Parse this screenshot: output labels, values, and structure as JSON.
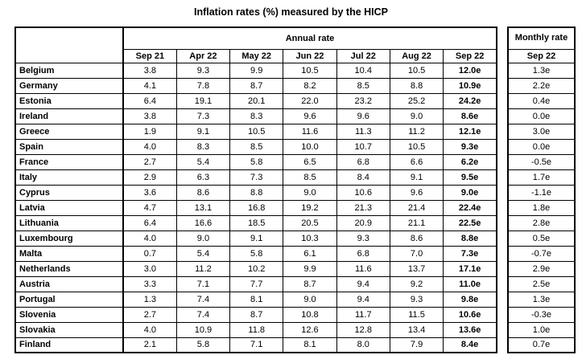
{
  "chart_data": {
    "type": "table",
    "title": "Inflation rates (%) measured by the HICP",
    "annual_group_label": "Annual rate",
    "monthly_group_label": "Monthly rate",
    "annual_columns": [
      "Sep 21",
      "Apr 22",
      "May 22",
      "Jun 22",
      "Jul 22",
      "Aug 22",
      "Sep 22"
    ],
    "monthly_column": "Sep 22",
    "rows": [
      {
        "country": "Belgium",
        "annual": [
          "3.8",
          "9.3",
          "9.9",
          "10.5",
          "10.4",
          "10.5",
          "12.0e"
        ],
        "monthly": "1.3e"
      },
      {
        "country": "Germany",
        "annual": [
          "4.1",
          "7.8",
          "8.7",
          "8.2",
          "8.5",
          "8.8",
          "10.9e"
        ],
        "monthly": "2.2e"
      },
      {
        "country": "Estonia",
        "annual": [
          "6.4",
          "19.1",
          "20.1",
          "22.0",
          "23.2",
          "25.2",
          "24.2e"
        ],
        "monthly": "0.4e"
      },
      {
        "country": "Ireland",
        "annual": [
          "3.8",
          "7.3",
          "8.3",
          "9.6",
          "9.6",
          "9.0",
          "8.6e"
        ],
        "monthly": "0.0e"
      },
      {
        "country": "Greece",
        "annual": [
          "1.9",
          "9.1",
          "10.5",
          "11.6",
          "11.3",
          "11.2",
          "12.1e"
        ],
        "monthly": "3.0e"
      },
      {
        "country": "Spain",
        "annual": [
          "4.0",
          "8.3",
          "8.5",
          "10.0",
          "10.7",
          "10.5",
          "9.3e"
        ],
        "monthly": "0.0e"
      },
      {
        "country": "France",
        "annual": [
          "2.7",
          "5.4",
          "5.8",
          "6.5",
          "6.8",
          "6.6",
          "6.2e"
        ],
        "monthly": "-0.5e"
      },
      {
        "country": "Italy",
        "annual": [
          "2.9",
          "6.3",
          "7.3",
          "8.5",
          "8.4",
          "9.1",
          "9.5e"
        ],
        "monthly": "1.7e"
      },
      {
        "country": "Cyprus",
        "annual": [
          "3.6",
          "8.6",
          "8.8",
          "9.0",
          "10.6",
          "9.6",
          "9.0e"
        ],
        "monthly": "-1.1e"
      },
      {
        "country": "Latvia",
        "annual": [
          "4.7",
          "13.1",
          "16.8",
          "19.2",
          "21.3",
          "21.4",
          "22.4e"
        ],
        "monthly": "1.8e"
      },
      {
        "country": "Lithuania",
        "annual": [
          "6.4",
          "16.6",
          "18.5",
          "20.5",
          "20.9",
          "21.1",
          "22.5e"
        ],
        "monthly": "2.8e"
      },
      {
        "country": "Luxembourg",
        "annual": [
          "4.0",
          "9.0",
          "9.1",
          "10.3",
          "9.3",
          "8.6",
          "8.8e"
        ],
        "monthly": "0.5e"
      },
      {
        "country": "Malta",
        "annual": [
          "0.7",
          "5.4",
          "5.8",
          "6.1",
          "6.8",
          "7.0",
          "7.3e"
        ],
        "monthly": "-0.7e"
      },
      {
        "country": "Netherlands",
        "annual": [
          "3.0",
          "11.2",
          "10.2",
          "9.9",
          "11.6",
          "13.7",
          "17.1e"
        ],
        "monthly": "2.9e"
      },
      {
        "country": "Austria",
        "annual": [
          "3.3",
          "7.1",
          "7.7",
          "8.7",
          "9.4",
          "9.2",
          "11.0e"
        ],
        "monthly": "2.5e"
      },
      {
        "country": "Portugal",
        "annual": [
          "1.3",
          "7.4",
          "8.1",
          "9.0",
          "9.4",
          "9.3",
          "9.8e"
        ],
        "monthly": "1.3e"
      },
      {
        "country": "Slovenia",
        "annual": [
          "2.7",
          "7.4",
          "8.7",
          "10.8",
          "11.7",
          "11.5",
          "10.6e"
        ],
        "monthly": "-0.3e"
      },
      {
        "country": "Slovakia",
        "annual": [
          "4.0",
          "10.9",
          "11.8",
          "12.6",
          "12.8",
          "13.4",
          "13.6e"
        ],
        "monthly": "1.0e"
      },
      {
        "country": "Finland",
        "annual": [
          "2.1",
          "5.8",
          "7.1",
          "8.1",
          "8.0",
          "7.9",
          "8.4e"
        ],
        "monthly": "0.7e"
      }
    ]
  }
}
